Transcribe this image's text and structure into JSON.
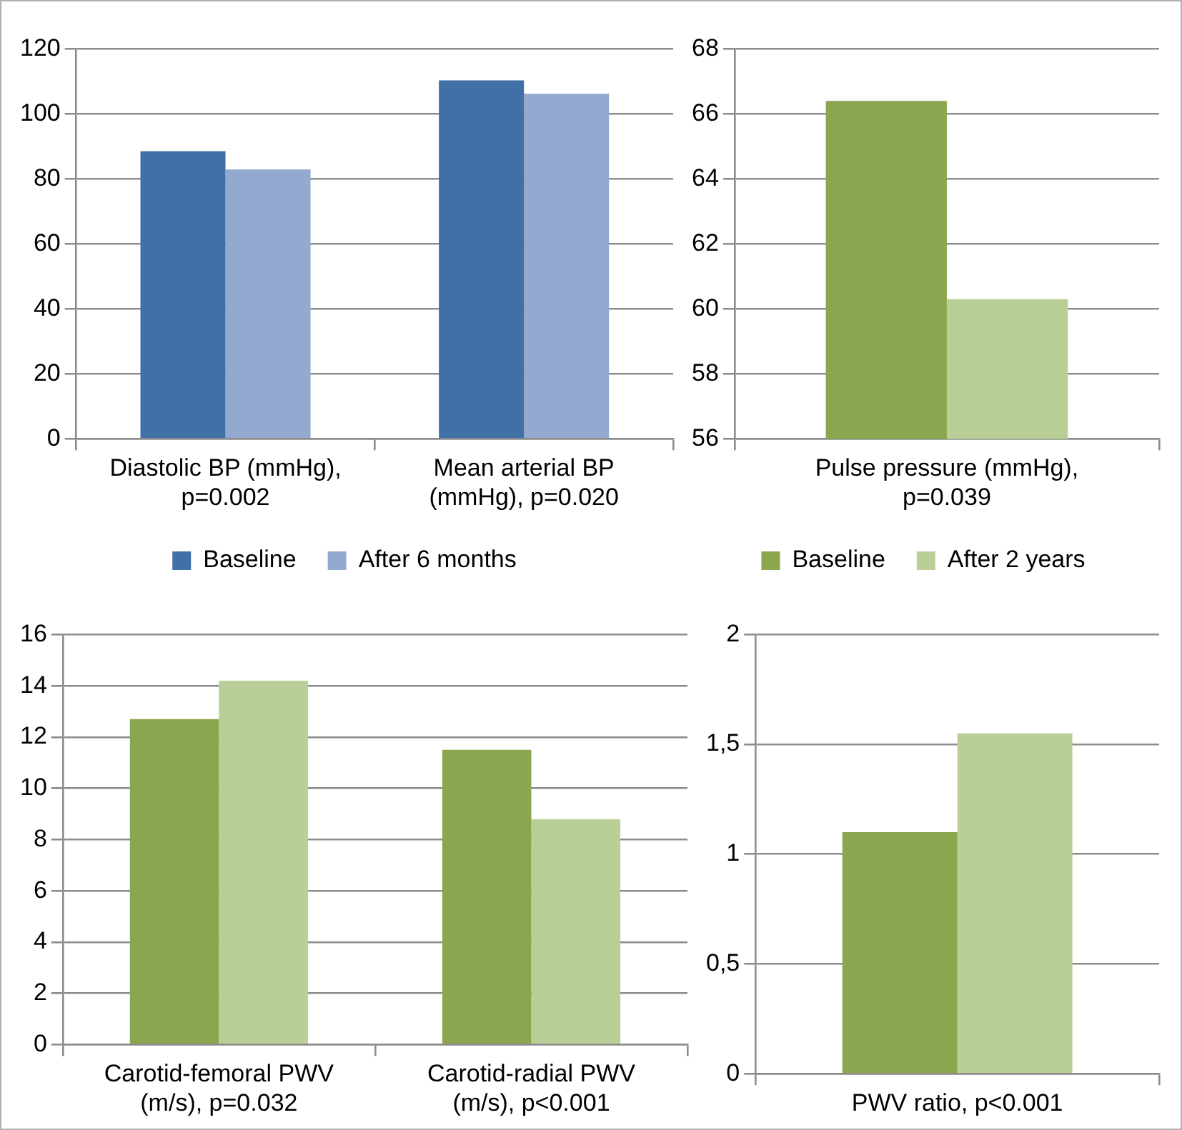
{
  "chart_data": [
    {
      "type": "bar",
      "categories": [
        "Diastolic BP (mmHg), p=0.002",
        "Mean arterial BP (mmHg), p=0.020"
      ],
      "series": [
        {
          "name": "Baseline",
          "color": "#4170a7",
          "values": [
            88.5,
            110.3
          ]
        },
        {
          "name": "After 6 months",
          "color": "#93a9cf",
          "values": [
            82.9,
            106.2
          ]
        }
      ],
      "ylim": [
        0,
        120
      ],
      "yticks": [
        0,
        20,
        40,
        60,
        80,
        100,
        120
      ],
      "grid": "y",
      "legend": "bottom"
    },
    {
      "type": "bar",
      "categories": [
        "Pulse pressure (mmHg), p=0.039"
      ],
      "series": [
        {
          "name": "Baseline",
          "color": "#8aa64e",
          "values": [
            66.4
          ]
        },
        {
          "name": "After 2 years",
          "color": "#bace97",
          "values": [
            60.3
          ]
        }
      ],
      "ylim": [
        56,
        68
      ],
      "yticks": [
        56,
        58,
        60,
        62,
        64,
        66,
        68
      ],
      "grid": "y",
      "legend": "bottom"
    },
    {
      "type": "bar",
      "categories": [
        "Carotid-femoral PWV (m/s), p=0.032",
        "Carotid-radial PWV (m/s), p<0.001"
      ],
      "series": [
        {
          "color": "#8aa64e",
          "values": [
            12.7,
            11.5
          ]
        },
        {
          "color": "#bace97",
          "values": [
            14.2,
            8.8
          ]
        }
      ],
      "ylim": [
        0,
        16
      ],
      "yticks": [
        0,
        2,
        4,
        6,
        8,
        10,
        12,
        14,
        16
      ],
      "grid": "y"
    },
    {
      "type": "bar",
      "categories": [
        "PWV ratio, p<0.001"
      ],
      "series": [
        {
          "color": "#8aa64e",
          "values": [
            1.1
          ]
        },
        {
          "color": "#bace97",
          "values": [
            1.55
          ]
        }
      ],
      "ylim": [
        0,
        2
      ],
      "yticks": [
        0,
        {
          "value": 0.5,
          "label": "0,5"
        },
        1,
        {
          "value": 1.5,
          "label": "1,5"
        },
        2
      ],
      "grid": "y"
    }
  ]
}
